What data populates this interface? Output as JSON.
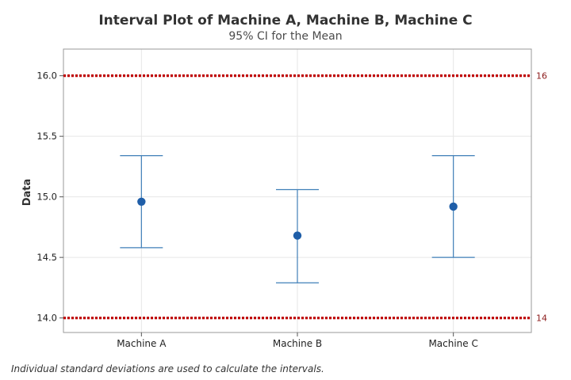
{
  "chart_data": {
    "type": "interval",
    "title": "Interval Plot of Machine A, Machine B, Machine C",
    "subtitle": "95% CI for the Mean",
    "ylabel": "Data",
    "xlabel": "",
    "categories": [
      "Machine A",
      "Machine B",
      "Machine C"
    ],
    "means": [
      14.96,
      14.68,
      14.92
    ],
    "ci_lower": [
      14.58,
      14.29,
      14.5
    ],
    "ci_upper": [
      15.34,
      15.06,
      15.34
    ],
    "ylim": [
      13.88,
      16.22
    ],
    "yticks": [
      "14.0",
      "14.5",
      "15.0",
      "15.5",
      "16.0"
    ],
    "ytick_values": [
      14.0,
      14.5,
      15.0,
      15.5,
      16.0
    ],
    "grid": true,
    "reference_lines": [
      {
        "value": 16,
        "label": "16"
      },
      {
        "value": 14,
        "label": "14"
      }
    ],
    "footnote": "Individual standard deviations are used to calculate the intervals."
  },
  "colors": {
    "series": "#1f5ea8",
    "interval": "#3f7fb8",
    "reference": "#c00000",
    "reference_label": "#8b1a1a",
    "grid": "#e6e6e6",
    "frame": "#9a9a9a"
  }
}
